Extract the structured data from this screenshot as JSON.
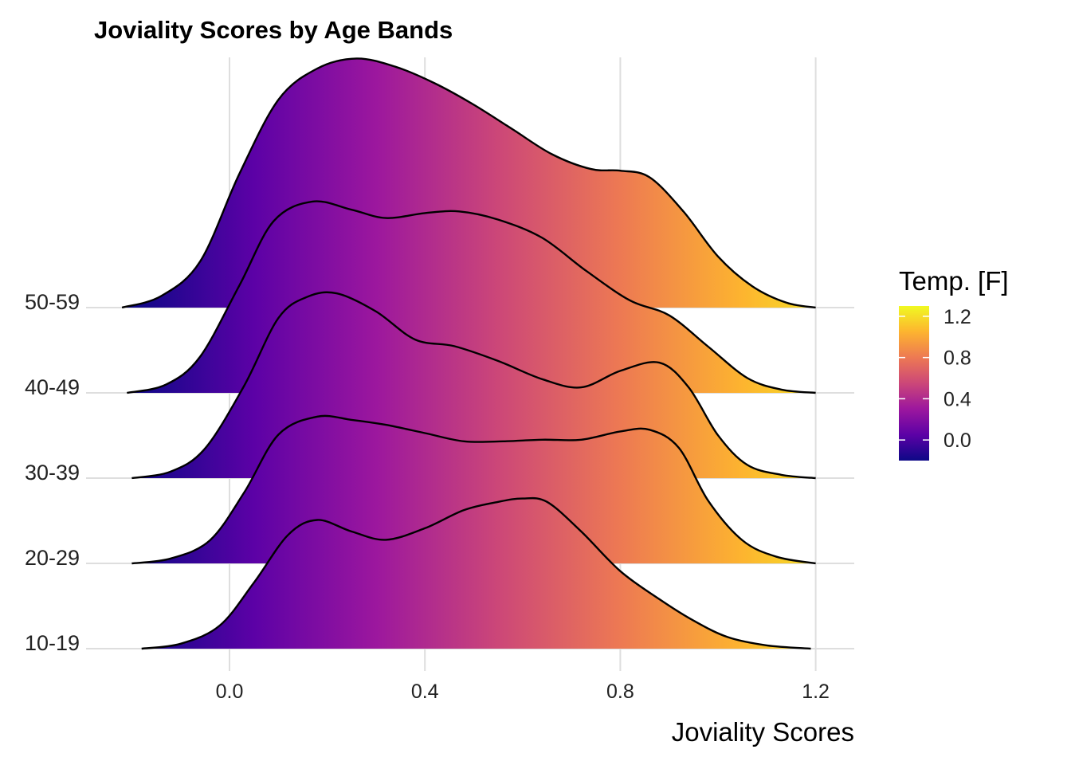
{
  "chart_data": {
    "type": "ridgeline",
    "title": "Joviality Scores by Age Bands",
    "xlabel": "Joviality Scores",
    "ylabel": "",
    "xlim": [
      -0.25,
      1.27
    ],
    "x_ticks": [
      "0.0",
      "0.4",
      "0.8",
      "1.2"
    ],
    "x_tick_values": [
      0.0,
      0.4,
      0.8,
      1.2
    ],
    "grid": "vertical and baselines",
    "legend": {
      "title": "Temp. [F]",
      "placement": "right",
      "ticks": [
        "0.0",
        "0.4",
        "0.8",
        "1.2"
      ],
      "tick_values": [
        0.0,
        0.4,
        0.8,
        1.2
      ],
      "range": [
        -0.2,
        1.3
      ],
      "colormap": [
        "#0d0887",
        "#5c01a6",
        "#9c179e",
        "#cc4778",
        "#ed7953",
        "#fdb42f",
        "#f0f921"
      ]
    },
    "series": [
      {
        "name": "10-19",
        "density": [
          [
            -0.18,
            0.0
          ],
          [
            -0.1,
            0.03
          ],
          [
            -0.02,
            0.14
          ],
          [
            0.05,
            0.4
          ],
          [
            0.12,
            0.69
          ],
          [
            0.18,
            0.78
          ],
          [
            0.25,
            0.71
          ],
          [
            0.32,
            0.66
          ],
          [
            0.4,
            0.73
          ],
          [
            0.48,
            0.84
          ],
          [
            0.55,
            0.89
          ],
          [
            0.6,
            0.91
          ],
          [
            0.65,
            0.89
          ],
          [
            0.72,
            0.71
          ],
          [
            0.8,
            0.47
          ],
          [
            0.88,
            0.3
          ],
          [
            0.95,
            0.17
          ],
          [
            1.02,
            0.07
          ],
          [
            1.1,
            0.02
          ],
          [
            1.19,
            0.0
          ]
        ]
      },
      {
        "name": "20-29",
        "density": [
          [
            -0.2,
            0.0
          ],
          [
            -0.12,
            0.03
          ],
          [
            -0.04,
            0.14
          ],
          [
            0.03,
            0.43
          ],
          [
            0.1,
            0.78
          ],
          [
            0.18,
            0.89
          ],
          [
            0.25,
            0.87
          ],
          [
            0.32,
            0.84
          ],
          [
            0.4,
            0.79
          ],
          [
            0.48,
            0.74
          ],
          [
            0.56,
            0.74
          ],
          [
            0.64,
            0.75
          ],
          [
            0.72,
            0.75
          ],
          [
            0.8,
            0.8
          ],
          [
            0.86,
            0.81
          ],
          [
            0.92,
            0.7
          ],
          [
            0.98,
            0.38
          ],
          [
            1.05,
            0.14
          ],
          [
            1.12,
            0.04
          ],
          [
            1.2,
            0.0
          ]
        ]
      },
      {
        "name": "30-39",
        "density": [
          [
            -0.2,
            0.0
          ],
          [
            -0.12,
            0.04
          ],
          [
            -0.05,
            0.18
          ],
          [
            0.03,
            0.56
          ],
          [
            0.1,
            0.97
          ],
          [
            0.16,
            1.1
          ],
          [
            0.22,
            1.12
          ],
          [
            0.3,
            1.01
          ],
          [
            0.38,
            0.84
          ],
          [
            0.46,
            0.8
          ],
          [
            0.55,
            0.71
          ],
          [
            0.64,
            0.6
          ],
          [
            0.72,
            0.55
          ],
          [
            0.8,
            0.65
          ],
          [
            0.88,
            0.7
          ],
          [
            0.94,
            0.55
          ],
          [
            1.0,
            0.26
          ],
          [
            1.06,
            0.08
          ],
          [
            1.13,
            0.02
          ],
          [
            1.2,
            0.0
          ]
        ]
      },
      {
        "name": "40-49",
        "density": [
          [
            -0.21,
            0.0
          ],
          [
            -0.13,
            0.05
          ],
          [
            -0.06,
            0.22
          ],
          [
            0.02,
            0.65
          ],
          [
            0.09,
            1.04
          ],
          [
            0.17,
            1.16
          ],
          [
            0.25,
            1.11
          ],
          [
            0.32,
            1.06
          ],
          [
            0.4,
            1.09
          ],
          [
            0.47,
            1.1
          ],
          [
            0.55,
            1.05
          ],
          [
            0.64,
            0.94
          ],
          [
            0.73,
            0.74
          ],
          [
            0.82,
            0.56
          ],
          [
            0.9,
            0.47
          ],
          [
            0.98,
            0.28
          ],
          [
            1.06,
            0.09
          ],
          [
            1.13,
            0.02
          ],
          [
            1.2,
            0.0
          ]
        ]
      },
      {
        "name": "50-59",
        "density": [
          [
            -0.22,
            0.0
          ],
          [
            -0.14,
            0.07
          ],
          [
            -0.06,
            0.28
          ],
          [
            0.02,
            0.81
          ],
          [
            0.1,
            1.26
          ],
          [
            0.18,
            1.45
          ],
          [
            0.26,
            1.51
          ],
          [
            0.34,
            1.46
          ],
          [
            0.42,
            1.36
          ],
          [
            0.5,
            1.23
          ],
          [
            0.58,
            1.08
          ],
          [
            0.66,
            0.93
          ],
          [
            0.74,
            0.84
          ],
          [
            0.8,
            0.83
          ],
          [
            0.86,
            0.79
          ],
          [
            0.93,
            0.58
          ],
          [
            1.0,
            0.31
          ],
          [
            1.07,
            0.13
          ],
          [
            1.14,
            0.03
          ],
          [
            1.2,
            0.0
          ]
        ]
      }
    ]
  }
}
